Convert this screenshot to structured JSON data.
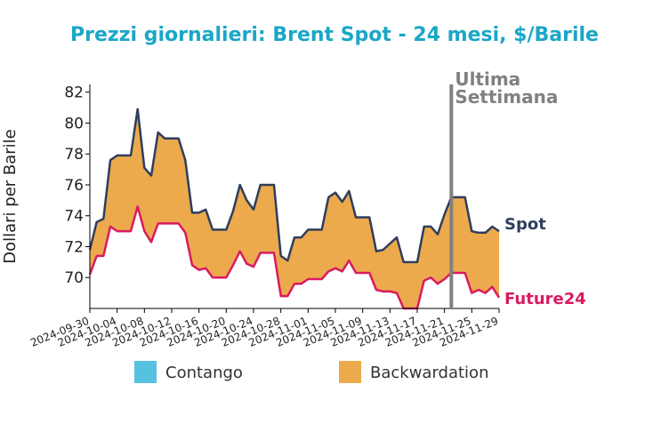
{
  "chart_data": {
    "type": "area",
    "title": "Prezzi giornalieri: Brent Spot - 24 mesi, $/Barile",
    "xlabel": "",
    "ylabel": "Dollari per Barile",
    "ylim": [
      68,
      82.5
    ],
    "yticks": [
      70,
      72,
      74,
      76,
      78,
      80,
      82
    ],
    "xticks": [
      "2024-09-30",
      "2024-10-04",
      "2024-10-08",
      "2024-10-12",
      "2024-10-16",
      "2024-10-20",
      "2024-10-24",
      "2024-10-28",
      "2024-11-01",
      "2024-11-05",
      "2024-11-09",
      "2024-11-13",
      "2024-11-17",
      "2024-11-21",
      "2024-11-25",
      "2024-11-29"
    ],
    "x": [
      "2024-09-30",
      "2024-10-01",
      "2024-10-02",
      "2024-10-03",
      "2024-10-04",
      "2024-10-05",
      "2024-10-06",
      "2024-10-07",
      "2024-10-08",
      "2024-10-09",
      "2024-10-10",
      "2024-10-11",
      "2024-10-12",
      "2024-10-13",
      "2024-10-14",
      "2024-10-15",
      "2024-10-16",
      "2024-10-17",
      "2024-10-18",
      "2024-10-19",
      "2024-10-20",
      "2024-10-21",
      "2024-10-22",
      "2024-10-23",
      "2024-10-24",
      "2024-10-25",
      "2024-10-26",
      "2024-10-27",
      "2024-10-28",
      "2024-10-29",
      "2024-10-30",
      "2024-10-31",
      "2024-11-01",
      "2024-11-02",
      "2024-11-03",
      "2024-11-04",
      "2024-11-05",
      "2024-11-06",
      "2024-11-07",
      "2024-11-08",
      "2024-11-09",
      "2024-11-10",
      "2024-11-11",
      "2024-11-12",
      "2024-11-13",
      "2024-11-14",
      "2024-11-15",
      "2024-11-16",
      "2024-11-17",
      "2024-11-18",
      "2024-11-19",
      "2024-11-20",
      "2024-11-21",
      "2024-11-22",
      "2024-11-23",
      "2024-11-24",
      "2024-11-25",
      "2024-11-26",
      "2024-11-27",
      "2024-11-28",
      "2024-11-29"
    ],
    "series": [
      {
        "name": "Spot",
        "color": "#2e3e5c",
        "values": [
          71.8,
          73.6,
          73.8,
          77.6,
          77.9,
          77.9,
          77.9,
          80.9,
          77.1,
          76.6,
          79.4,
          79.0,
          79.0,
          79.0,
          77.6,
          74.2,
          74.2,
          74.4,
          73.1,
          73.1,
          73.1,
          74.3,
          76.0,
          75.0,
          74.4,
          76.0,
          76.0,
          76.0,
          71.4,
          71.1,
          72.6,
          72.6,
          73.1,
          73.1,
          73.1,
          75.2,
          75.5,
          74.9,
          75.6,
          73.9,
          73.9,
          73.9,
          71.7,
          71.8,
          72.2,
          72.6,
          71.0,
          71.0,
          71.0,
          73.3,
          73.3,
          72.8,
          74.1,
          75.2,
          75.2,
          75.2,
          73.0,
          72.9,
          72.9,
          73.3,
          73.0
        ]
      },
      {
        "name": "Future24",
        "color": "#d81b60",
        "values": [
          70.2,
          71.4,
          71.4,
          73.3,
          73.0,
          73.0,
          73.0,
          74.6,
          73.0,
          72.3,
          73.5,
          73.5,
          73.5,
          73.5,
          72.9,
          70.8,
          70.5,
          70.6,
          70.0,
          70.0,
          70.0,
          70.8,
          71.7,
          70.9,
          70.7,
          71.6,
          71.6,
          71.6,
          68.8,
          68.8,
          69.6,
          69.6,
          69.9,
          69.9,
          69.9,
          70.4,
          70.6,
          70.4,
          71.1,
          70.3,
          70.3,
          70.3,
          69.2,
          69.1,
          69.1,
          69.0,
          68.0,
          68.0,
          68.0,
          69.8,
          70.0,
          69.6,
          69.9,
          70.3,
          70.3,
          70.3,
          69.0,
          69.2,
          69.0,
          69.4,
          68.7
        ]
      }
    ],
    "annotations": [
      {
        "text": "Ultima Settimana",
        "lines": [
          "Ultima",
          "Settimana"
        ],
        "x": "2024-11-22",
        "color": "#808080"
      }
    ],
    "legend": {
      "placement": "bottom",
      "items": [
        {
          "label": "Contango",
          "color": "#56c1e0"
        },
        {
          "label": "Backwardation",
          "color": "#ecaa4c"
        }
      ]
    },
    "grid": false,
    "title_color": "#1aa7c7"
  }
}
